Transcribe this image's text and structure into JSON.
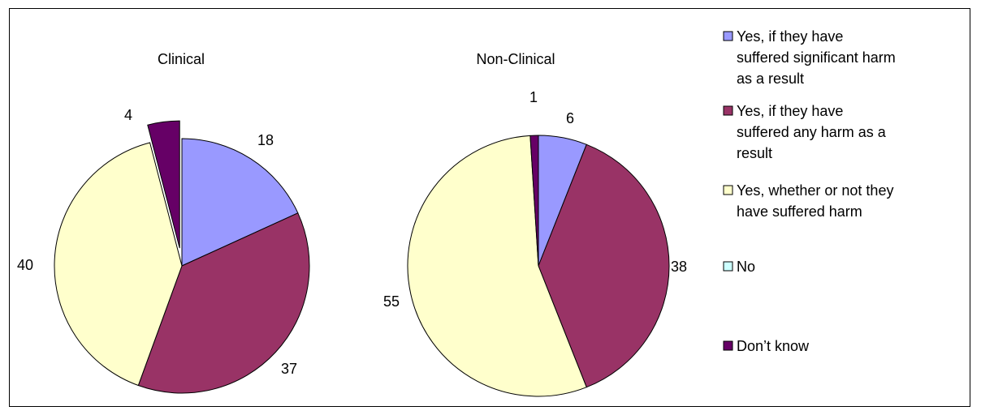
{
  "chart_data": [
    {
      "type": "pie",
      "title": "Clinical",
      "categories": [
        "Yes, if they have suffered significant harm as a result",
        "Yes, if they have suffered any harm as a result",
        "Yes, whether or not they have suffered harm",
        "No",
        "Don’t know"
      ],
      "values": [
        18,
        37,
        40,
        0,
        4
      ],
      "labels": [
        "18",
        "37",
        "40",
        "",
        "4"
      ],
      "exploded": [
        false,
        false,
        false,
        false,
        true
      ]
    },
    {
      "type": "pie",
      "title": "Non-Clinical",
      "categories": [
        "Yes, if they have suffered significant harm as a result",
        "Yes, if they have suffered any harm as a result",
        "Yes, whether or not they have suffered harm",
        "No",
        "Don’t know"
      ],
      "values": [
        6,
        38,
        55,
        0,
        1
      ],
      "labels": [
        "6",
        "38",
        "55",
        "",
        "1"
      ],
      "exploded": [
        false,
        false,
        false,
        false,
        false
      ]
    }
  ],
  "legend": {
    "placement": "right",
    "items": [
      {
        "lines": [
          "Yes, if they have",
          "suffered significant harm",
          "as a result"
        ],
        "color": "#9999ff"
      },
      {
        "lines": [
          "Yes, if they have",
          "suffered any harm as a",
          "result"
        ],
        "color": "#993366"
      },
      {
        "lines": [
          "Yes, whether or not they",
          "have suffered harm"
        ],
        "color": "#ffffcc"
      },
      {
        "lines": [
          "No"
        ],
        "color": "#ccffff"
      },
      {
        "lines": [
          "Don’t know"
        ],
        "color": "#660066"
      }
    ]
  }
}
